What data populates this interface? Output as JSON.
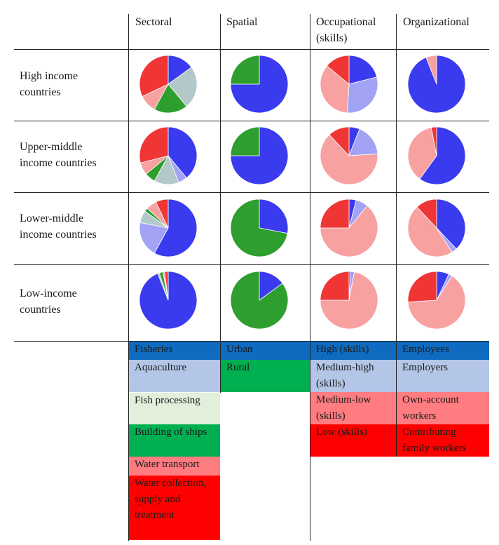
{
  "columns": [
    "Sectoral",
    "Spatial",
    "Occupational (skills)",
    "Organizational"
  ],
  "column_header_lines": [
    [
      "Sectoral"
    ],
    [
      "Spatial"
    ],
    [
      "Occupational",
      "(skills)"
    ],
    [
      "Organizational"
    ]
  ],
  "rows": [
    {
      "label_lines": [
        "High income",
        "countries"
      ]
    },
    {
      "label_lines": [
        "Upper-middle",
        "income countries"
      ]
    },
    {
      "label_lines": [
        "Lower-middle",
        "income countries"
      ]
    },
    {
      "label_lines": [
        "Low-income",
        "countries"
      ]
    }
  ],
  "colors": {
    "blue_dark": "#0e6bbf",
    "blue_light": "#b4c6e7",
    "green_pale": "#e2efda",
    "green": "#00b050",
    "red_light": "#ff7c80",
    "red": "#ff0000",
    "pie_blue": "#3a3aef",
    "pie_blue_light": "#a3a3f6",
    "pie_grey": "#b3c9c9",
    "pie_green": "#2e9e2e",
    "pie_pink": "#f8a1a1",
    "pie_red": "#f03535"
  },
  "chart_data": {
    "type": "pie",
    "pies": [
      {
        "row": "High income countries",
        "column": "Sectoral",
        "slices": [
          {
            "category": "Fisheries",
            "value": 15,
            "color": "#3a3aef"
          },
          {
            "category": "Aquaculture",
            "value": 24,
            "color": "#b3c9c9"
          },
          {
            "category": "Building of ships",
            "value": 19,
            "color": "#2e9e2e"
          },
          {
            "category": "Water transport",
            "value": 10,
            "color": "#f8a1a1"
          },
          {
            "category": "Water collection, supply and treatment",
            "value": 32,
            "color": "#f03535"
          }
        ]
      },
      {
        "row": "High income countries",
        "column": "Spatial",
        "slices": [
          {
            "category": "Urban",
            "value": 75,
            "color": "#3a3aef"
          },
          {
            "category": "Rural",
            "value": 25,
            "color": "#2e9e2e"
          }
        ]
      },
      {
        "row": "High income countries",
        "column": "Occupational (skills)",
        "slices": [
          {
            "category": "High (skills)",
            "value": 21,
            "color": "#3a3aef"
          },
          {
            "category": "Medium-high (skills)",
            "value": 30,
            "color": "#a3a3f6"
          },
          {
            "category": "Medium-low (skills)",
            "value": 35,
            "color": "#f8a1a1"
          },
          {
            "category": "Low (skills)",
            "value": 14,
            "color": "#f03535"
          }
        ]
      },
      {
        "row": "High income countries",
        "column": "Organizational",
        "slices": [
          {
            "category": "Employees",
            "value": 94,
            "color": "#3a3aef"
          },
          {
            "category": "Own-account workers",
            "value": 6,
            "color": "#f8a1a1"
          }
        ]
      },
      {
        "row": "Upper-middle income countries",
        "column": "Sectoral",
        "slices": [
          {
            "category": "Fisheries",
            "value": 39,
            "color": "#3a3aef"
          },
          {
            "category": "Aquaculture",
            "value": 5,
            "color": "#a3a3f6"
          },
          {
            "category": "Fish processing",
            "value": 14,
            "color": "#b3c9c9"
          },
          {
            "category": "Building of ships",
            "value": 6,
            "color": "#2e9e2e"
          },
          {
            "category": "Water transport",
            "value": 7,
            "color": "#f8a1a1"
          },
          {
            "category": "Water collection, supply and treatment",
            "value": 29,
            "color": "#f03535"
          }
        ]
      },
      {
        "row": "Upper-middle income countries",
        "column": "Spatial",
        "slices": [
          {
            "category": "Urban",
            "value": 75,
            "color": "#3a3aef"
          },
          {
            "category": "Rural",
            "value": 25,
            "color": "#2e9e2e"
          }
        ]
      },
      {
        "row": "Upper-middle income countries",
        "column": "Occupational (skills)",
        "slices": [
          {
            "category": "High (skills)",
            "value": 6,
            "color": "#3a3aef"
          },
          {
            "category": "Medium-high (skills)",
            "value": 18,
            "color": "#a3a3f6"
          },
          {
            "category": "Medium-low (skills)",
            "value": 64,
            "color": "#f8a1a1"
          },
          {
            "category": "Low (skills)",
            "value": 12,
            "color": "#f03535"
          }
        ]
      },
      {
        "row": "Upper-middle income countries",
        "column": "Organizational",
        "slices": [
          {
            "category": "Employees",
            "value": 60,
            "color": "#3a3aef"
          },
          {
            "category": "Own-account workers",
            "value": 37,
            "color": "#f8a1a1"
          },
          {
            "category": "Contributing family workers",
            "value": 3,
            "color": "#f03535"
          }
        ]
      },
      {
        "row": "Lower-middle income countries",
        "column": "Sectoral",
        "slices": [
          {
            "category": "Fisheries",
            "value": 58,
            "color": "#3a3aef"
          },
          {
            "category": "Aquaculture",
            "value": 20,
            "color": "#a3a3f6"
          },
          {
            "category": "Fish processing",
            "value": 7,
            "color": "#b3c9c9"
          },
          {
            "category": "Building of ships",
            "value": 2,
            "color": "#2e9e2e"
          },
          {
            "category": "Water transport",
            "value": 6,
            "color": "#f8a1a1"
          },
          {
            "category": "Water collection, supply and treatment",
            "value": 7,
            "color": "#f03535"
          }
        ]
      },
      {
        "row": "Lower-middle income countries",
        "column": "Spatial",
        "slices": [
          {
            "category": "Urban",
            "value": 28,
            "color": "#3a3aef"
          },
          {
            "category": "Rural",
            "value": 72,
            "color": "#2e9e2e"
          }
        ]
      },
      {
        "row": "Lower-middle income countries",
        "column": "Occupational (skills)",
        "slices": [
          {
            "category": "High (skills)",
            "value": 4,
            "color": "#3a3aef"
          },
          {
            "category": "Medium-high (skills)",
            "value": 7,
            "color": "#a3a3f6"
          },
          {
            "category": "Medium-low (skills)",
            "value": 64,
            "color": "#f8a1a1"
          },
          {
            "category": "Low (skills)",
            "value": 25,
            "color": "#f03535"
          }
        ]
      },
      {
        "row": "Lower-middle income countries",
        "column": "Organizational",
        "slices": [
          {
            "category": "Employees",
            "value": 38,
            "color": "#3a3aef"
          },
          {
            "category": "Employers",
            "value": 3,
            "color": "#a3a3f6"
          },
          {
            "category": "Own-account workers",
            "value": 47,
            "color": "#f8a1a1"
          },
          {
            "category": "Contributing family workers",
            "value": 12,
            "color": "#f03535"
          }
        ]
      },
      {
        "row": "Low-income countries",
        "column": "Sectoral",
        "slices": [
          {
            "category": "Fisheries",
            "value": 94,
            "color": "#3a3aef"
          },
          {
            "category": "Fish processing",
            "value": 1,
            "color": "#b3c9c9"
          },
          {
            "category": "Building of ships",
            "value": 2,
            "color": "#2e9e2e"
          },
          {
            "category": "Water transport",
            "value": 1,
            "color": "#f8a1a1"
          },
          {
            "category": "Water collection, supply and treatment",
            "value": 2,
            "color": "#f03535"
          }
        ]
      },
      {
        "row": "Low-income countries",
        "column": "Spatial",
        "slices": [
          {
            "category": "Urban",
            "value": 15,
            "color": "#3a3aef"
          },
          {
            "category": "Rural",
            "value": 85,
            "color": "#2e9e2e"
          }
        ]
      },
      {
        "row": "Low-income countries",
        "column": "Occupational (skills)",
        "slices": [
          {
            "category": "High (skills)",
            "value": 1,
            "color": "#3a3aef"
          },
          {
            "category": "Medium-high (skills)",
            "value": 2,
            "color": "#a3a3f6"
          },
          {
            "category": "Medium-low (skills)",
            "value": 72,
            "color": "#f8a1a1"
          },
          {
            "category": "Low (skills)",
            "value": 25,
            "color": "#f03535"
          }
        ]
      },
      {
        "row": "Low-income countries",
        "column": "Organizational",
        "slices": [
          {
            "category": "Employees",
            "value": 7,
            "color": "#3a3aef"
          },
          {
            "category": "Employers",
            "value": 2,
            "color": "#a3a3f6"
          },
          {
            "category": "Own-account workers",
            "value": 65,
            "color": "#f8a1a1"
          },
          {
            "category": "Contributing family workers",
            "value": 26,
            "color": "#f03535"
          }
        ]
      }
    ],
    "legends": [
      {
        "column": "Sectoral",
        "entries": [
          {
            "label": "Fisheries",
            "color": "#0e6bbf"
          },
          {
            "label": "Aquaculture",
            "color": "#b4c6e7"
          },
          {
            "label": "Fish processing",
            "color": "#e2efda"
          },
          {
            "label": "Building of ships",
            "color": "#00b050"
          },
          {
            "label": "Water transport",
            "color": "#ff7c80"
          },
          {
            "label": "Water collection, supply and treatment",
            "color": "#ff0000"
          }
        ]
      },
      {
        "column": "Spatial",
        "entries": [
          {
            "label": "Urban",
            "color": "#0e6bbf"
          },
          {
            "label": "Rural",
            "color": "#00b050"
          }
        ]
      },
      {
        "column": "Occupational (skills)",
        "entries": [
          {
            "label": "High (skills)",
            "color": "#0e6bbf"
          },
          {
            "label": "Medium-high (skills)",
            "color": "#b4c6e7"
          },
          {
            "label": "Medium-low (skills)",
            "color": "#ff7c80"
          },
          {
            "label": "Low (skills)",
            "color": "#ff0000"
          }
        ]
      },
      {
        "column": "Organizational",
        "entries": [
          {
            "label": "Employees",
            "color": "#0e6bbf"
          },
          {
            "label": "Employers",
            "color": "#b4c6e7"
          },
          {
            "label": "Own-account workers",
            "color": "#ff7c80"
          },
          {
            "label": "Contributing family workers",
            "color": "#ff0000"
          }
        ]
      }
    ]
  }
}
